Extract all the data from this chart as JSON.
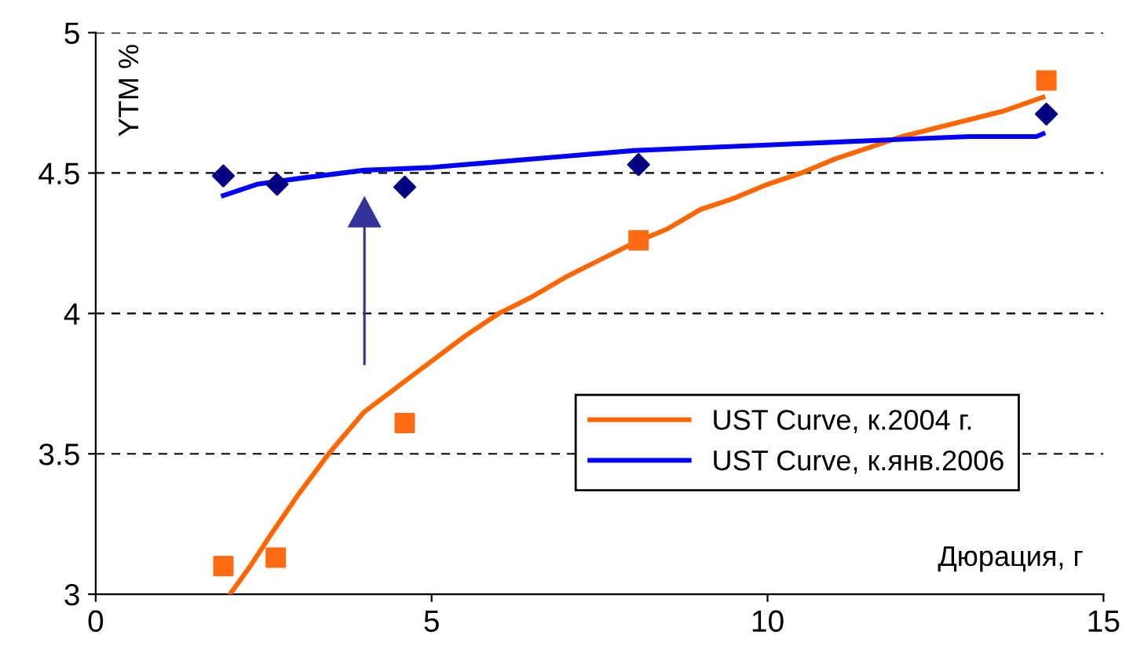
{
  "chart_data": {
    "type": "line",
    "xlabel": "Дюрация, г",
    "ylabel": "YTM %",
    "xlim": [
      0,
      15
    ],
    "xticks": [
      0,
      5,
      10,
      15
    ],
    "ylim": [
      3,
      5
    ],
    "yticks": [
      3,
      3.5,
      4,
      4.5,
      5
    ],
    "grid": "y",
    "legend": "right",
    "line_style": "solid",
    "series": [
      {
        "name": "UST Curve, к.2004 г.",
        "color": "#ff6600",
        "x": [
          2.0,
          2.3,
          2.6,
          3.0,
          3.5,
          4.0,
          4.5,
          5.0,
          5.5,
          6.0,
          6.5,
          7.0,
          7.5,
          8.0,
          8.5,
          9.0,
          9.5,
          10.0,
          10.5,
          11.0,
          11.5,
          12.0,
          12.5,
          13.0,
          13.5,
          14.1
        ],
        "values": [
          3.0,
          3.1,
          3.21,
          3.35,
          3.51,
          3.65,
          3.74,
          3.83,
          3.92,
          4.0,
          4.06,
          4.13,
          4.19,
          4.25,
          4.3,
          4.37,
          4.41,
          4.46,
          4.5,
          4.55,
          4.59,
          4.63,
          4.66,
          4.69,
          4.72,
          4.77
        ]
      },
      {
        "name": "UST Curve, к.янв.2006",
        "color": "#0000ff",
        "x": [
          1.9,
          2.4,
          3.0,
          4.0,
          5.0,
          6.0,
          7.0,
          8.0,
          9.0,
          10.0,
          11.0,
          12.0,
          13.0,
          14.0,
          14.1
        ],
        "values": [
          4.42,
          4.46,
          4.48,
          4.51,
          4.52,
          4.54,
          4.56,
          4.58,
          4.59,
          4.6,
          4.61,
          4.62,
          4.63,
          4.63,
          4.64
        ]
      },
      {
        "type": "scatter",
        "marker": "square",
        "color": "#ff6a13",
        "x": [
          1.9,
          2.68,
          4.6,
          8.08,
          14.15
        ],
        "values": [
          3.1,
          3.13,
          3.61,
          4.26,
          4.83
        ]
      },
      {
        "type": "scatter",
        "marker": "diamond",
        "color": "#000080",
        "x": [
          1.9,
          2.7,
          4.6,
          8.08,
          14.15
        ],
        "values": [
          4.49,
          4.46,
          4.45,
          4.53,
          4.71
        ]
      }
    ]
  }
}
